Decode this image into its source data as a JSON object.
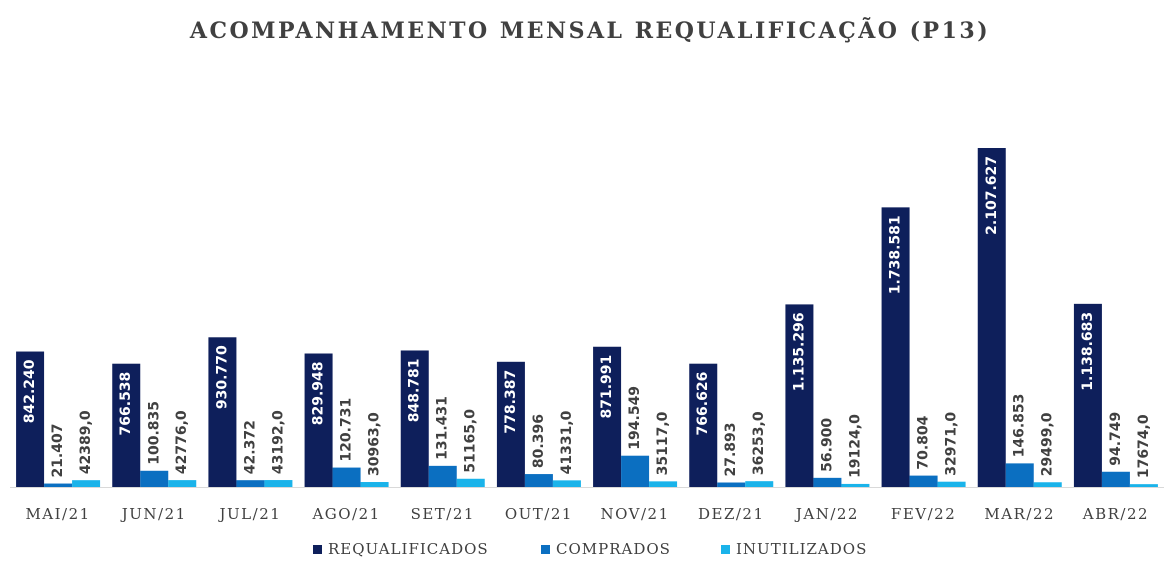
{
  "chart_data": {
    "type": "bar",
    "title": "ACOMPANHAMENTO MENSAL REQUALIFICAÇÃO (P13)",
    "categories": [
      "MAI/21",
      "JUN/21",
      "JUL/21",
      "AGO/21",
      "SET/21",
      "OUT/21",
      "NOV/21",
      "DEZ/21",
      "JAN/22",
      "FEV/22",
      "MAR/22",
      "ABR/22"
    ],
    "series": [
      {
        "name": "REQUALIFICADOS",
        "color": "#0e1f5b",
        "values": [
          842240,
          766538,
          930770,
          829948,
          848781,
          778387,
          871991,
          766626,
          1135296,
          1738581,
          2107627,
          1138683
        ],
        "value_labels": [
          "842.240",
          "766.538",
          "930.770",
          "829.948",
          "848.781",
          "778.387",
          "871.991",
          "766.626",
          "1.135.296",
          "1.738.581",
          "2.107.627",
          "1.138.683"
        ]
      },
      {
        "name": "COMPRADOS",
        "color": "#0b6fc1",
        "values": [
          21407,
          100835,
          42372,
          120731,
          131431,
          80396,
          194549,
          27893,
          56900,
          70804,
          146853,
          94749
        ],
        "value_labels": [
          "21.407",
          "100.835",
          "42.372",
          "120.731",
          "131.431",
          "80.396",
          "194.549",
          "27.893",
          "56.900",
          "70.804",
          "146.853",
          "94.749"
        ]
      },
      {
        "name": "INUTILIZADOS",
        "color": "#1ab3ea",
        "values": [
          42389,
          42776,
          43192,
          30963,
          51165,
          41331,
          35117,
          36253,
          19124,
          32971,
          29499,
          17674
        ],
        "value_labels": [
          "42389,0",
          "42776,0",
          "43192,0",
          "30963,0",
          "51165,0",
          "41331,0",
          "35117,0",
          "36253,0",
          "19124,0",
          "32971,0",
          "29499,0",
          "17674,0"
        ]
      }
    ],
    "legend": "bottom"
  }
}
